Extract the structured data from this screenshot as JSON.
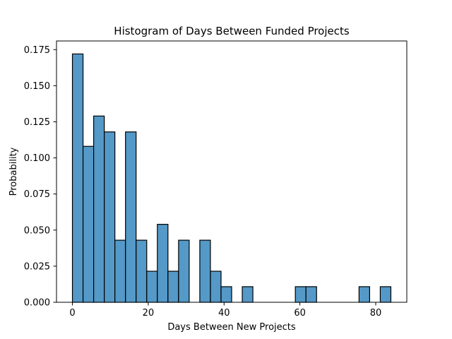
{
  "chart_data": {
    "type": "bar",
    "title": "Histogram of Days Between Funded Projects",
    "xlabel": "Days Between New Projects",
    "ylabel": "Probability",
    "xlim": [
      -4.2,
      88.2
    ],
    "ylim": [
      0,
      0.181
    ],
    "xticks": [
      0,
      20,
      40,
      60,
      80
    ],
    "xtick_labels": [
      "0",
      "20",
      "40",
      "60",
      "80"
    ],
    "yticks": [
      0,
      0.025,
      0.05,
      0.075,
      0.1,
      0.125,
      0.15,
      0.175
    ],
    "ytick_labels": [
      "0.000",
      "0.025",
      "0.050",
      "0.075",
      "0.100",
      "0.125",
      "0.150",
      "0.175"
    ],
    "grid": false,
    "bar_color": "#5499c7",
    "bin_width": 2.8,
    "bin_edges": [
      0,
      2.8,
      5.6,
      8.4,
      11.2,
      14,
      16.8,
      19.6,
      22.4,
      25.2,
      28,
      30.8,
      33.6,
      36.4,
      39.2,
      42,
      44.8,
      47.6,
      50.4,
      53.2,
      56,
      58.8,
      61.6,
      64.4,
      67.2,
      70,
      72.8,
      75.6,
      78.4,
      81.2,
      84
    ],
    "values": [
      0.172,
      0.108,
      0.129,
      0.118,
      0.043,
      0.118,
      0.043,
      0.0215,
      0.054,
      0.0215,
      0.043,
      0,
      0.043,
      0.0215,
      0.0108,
      0,
      0.0108,
      0,
      0,
      0,
      0,
      0.0108,
      0.0108,
      0,
      0,
      0,
      0,
      0.0108,
      0,
      0.0108
    ]
  }
}
